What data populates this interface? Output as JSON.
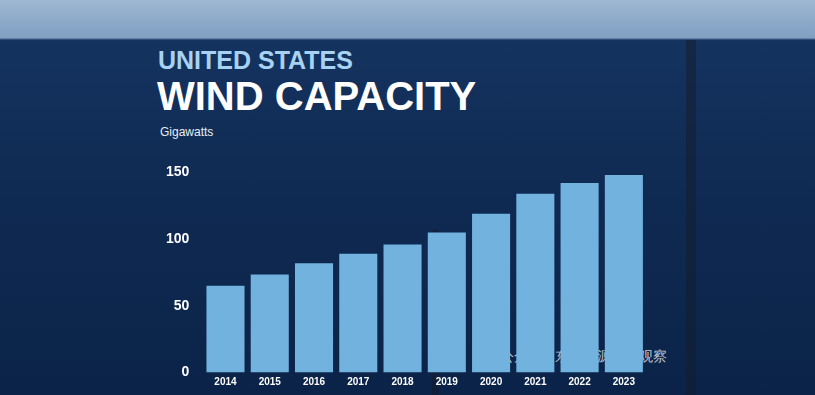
{
  "chart_data": {
    "type": "bar",
    "title": [
      "UNITED STATES",
      "WIND CAPACITY"
    ],
    "subtitle": "Gigawatts",
    "annotations": [
      "公众号 · 东亚能源产业观察"
    ],
    "categories": [
      "2014",
      "2015",
      "2016",
      "2017",
      "2018",
      "2019",
      "2020",
      "2021",
      "2022",
      "2023"
    ],
    "values": [
      65,
      73.5,
      82,
      89,
      96,
      105,
      119,
      134,
      142,
      148
    ],
    "color": "#72b2df",
    "ylim": [
      0,
      150
    ],
    "yticks": [
      0,
      50,
      100,
      150
    ],
    "grid": false
  }
}
